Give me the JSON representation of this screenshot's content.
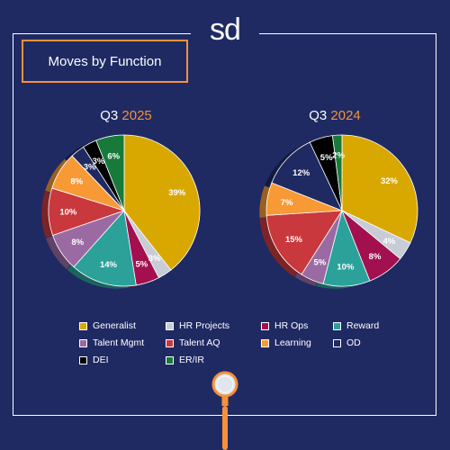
{
  "logo": "sd",
  "title": "Moves by Function",
  "colors": {
    "Generalist": "#d9a800",
    "HR Projects": "#c8ccd6",
    "HR Ops": "#a3104f",
    "Reward": "#2ba19a",
    "Talent Mgmt": "#9b6aa3",
    "Talent AQ": "#c9383d",
    "Learning": "#f79a36",
    "OD": "#1f2a63",
    "DEI": "#000000",
    "ER/IR": "#177a3a",
    "accent": "#f5913a",
    "background": "#1f2a63"
  },
  "legend": [
    "Generalist",
    "HR Projects",
    "HR Ops",
    "Reward",
    "Talent Mgmt",
    "Talent AQ",
    "Learning",
    "OD",
    "DEI",
    "ER/IR"
  ],
  "icons": [
    "magnifying-glass-icon"
  ],
  "chart_data": [
    {
      "type": "pie",
      "title": "Q3 2025",
      "title_prefix": "Q3",
      "title_year": "2025",
      "slices": [
        {
          "label": "Generalist",
          "value": 39,
          "text": "39%"
        },
        {
          "label": "HR Projects",
          "value": 3,
          "text": "3%"
        },
        {
          "label": "HR Ops",
          "value": 5,
          "text": "5%"
        },
        {
          "label": "Reward",
          "value": 14,
          "text": "14%"
        },
        {
          "label": "Talent Mgmt",
          "value": 8,
          "text": "8%"
        },
        {
          "label": "Talent AQ",
          "value": 10,
          "text": "10%"
        },
        {
          "label": "Learning",
          "value": 8,
          "text": "8%"
        },
        {
          "label": "OD",
          "value": 3,
          "text": "3%"
        },
        {
          "label": "DEI",
          "value": 3,
          "text": "3%"
        },
        {
          "label": "ER/IR",
          "value": 6,
          "text": "6%"
        }
      ]
    },
    {
      "type": "pie",
      "title": "Q3 2024",
      "title_prefix": "Q3",
      "title_year": "2024",
      "slices": [
        {
          "label": "Generalist",
          "value": 32,
          "text": "32%"
        },
        {
          "label": "HR Projects",
          "value": 4,
          "text": "4%"
        },
        {
          "label": "HR Ops",
          "value": 8,
          "text": "8%"
        },
        {
          "label": "Reward",
          "value": 10,
          "text": "10%"
        },
        {
          "label": "Talent Mgmt",
          "value": 5,
          "text": "5%"
        },
        {
          "label": "Talent AQ",
          "value": 15,
          "text": "15%"
        },
        {
          "label": "Learning",
          "value": 7,
          "text": "7%"
        },
        {
          "label": "OD",
          "value": 12,
          "text": "12%"
        },
        {
          "label": "DEI",
          "value": 5,
          "text": "5%"
        },
        {
          "label": "ER/IR",
          "value": 2,
          "text": "2%"
        }
      ]
    }
  ]
}
